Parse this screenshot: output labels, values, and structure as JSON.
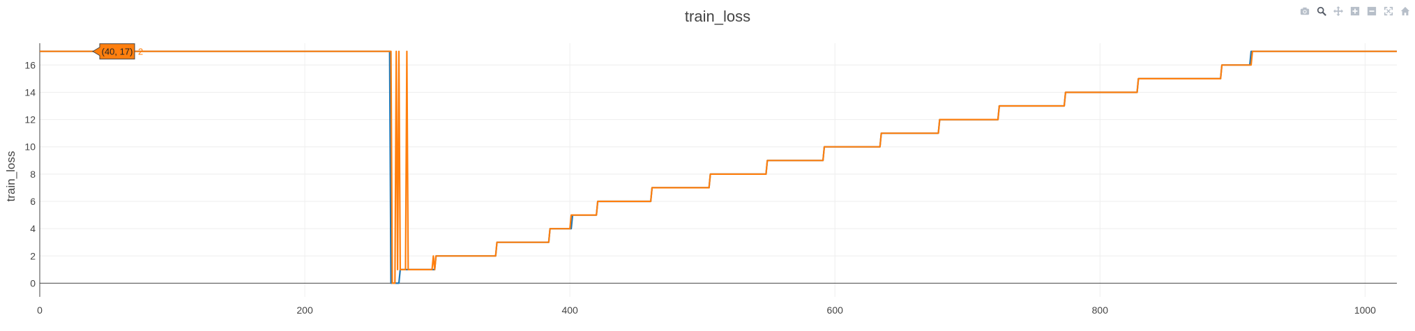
{
  "modebar": [
    {
      "name": "camera-icon",
      "title": "Download plot as a png",
      "glyph": "camera"
    },
    {
      "name": "zoom-icon",
      "title": "Zoom",
      "glyph": "zoom",
      "active": true
    },
    {
      "name": "pan-icon",
      "title": "Pan",
      "glyph": "pan"
    },
    {
      "name": "zoom-in-icon",
      "title": "Zoom in",
      "glyph": "plus"
    },
    {
      "name": "zoom-out-icon",
      "title": "Zoom out",
      "glyph": "minus"
    },
    {
      "name": "autoscale-icon",
      "title": "Autoscale",
      "glyph": "autoscale"
    },
    {
      "name": "home-icon",
      "title": "Reset axes",
      "glyph": "home"
    }
  ],
  "chart_data": {
    "type": "line",
    "title": "train_loss",
    "xlabel": "",
    "ylabel": "train_loss",
    "xlim": [
      0,
      1024
    ],
    "ylim": [
      -1,
      17.6
    ],
    "xticks": [
      0,
      200,
      400,
      600,
      800,
      1000
    ],
    "yticks": [
      0,
      2,
      4,
      6,
      8,
      10,
      12,
      14,
      16
    ],
    "grid": true,
    "hover_label": {
      "text": "(40, 17)",
      "trace": "2",
      "x": 40,
      "y": 17,
      "color": "#ff7f0e"
    },
    "series": [
      {
        "color": "#1f77b4",
        "points": [
          [
            0,
            17
          ],
          [
            264,
            17
          ],
          [
            265,
            0
          ],
          [
            271,
            0
          ],
          [
            272,
            1
          ],
          [
            298,
            1
          ],
          [
            299,
            2
          ],
          [
            344,
            2
          ],
          [
            345,
            3
          ],
          [
            384,
            3
          ],
          [
            385,
            4
          ],
          [
            401,
            4
          ],
          [
            402,
            5
          ],
          [
            420,
            5
          ],
          [
            421,
            6
          ],
          [
            461,
            6
          ],
          [
            462,
            7
          ],
          [
            505,
            7
          ],
          [
            506,
            8
          ],
          [
            548,
            8
          ],
          [
            549,
            9
          ],
          [
            591,
            9
          ],
          [
            592,
            10
          ],
          [
            634,
            10
          ],
          [
            635,
            11
          ],
          [
            678,
            11
          ],
          [
            679,
            12
          ],
          [
            723,
            12
          ],
          [
            724,
            13
          ],
          [
            773,
            13
          ],
          [
            774,
            14
          ],
          [
            828,
            14
          ],
          [
            829,
            15
          ],
          [
            891,
            15
          ],
          [
            892,
            16
          ],
          [
            913,
            16
          ],
          [
            914,
            17
          ],
          [
            1024,
            17
          ]
        ]
      },
      {
        "color": "#ff7f0e",
        "points": [
          [
            0,
            17
          ],
          [
            265,
            17
          ],
          [
            266,
            0
          ],
          [
            268,
            0
          ],
          [
            269,
            17
          ],
          [
            270,
            1
          ],
          [
            271,
            17
          ],
          [
            272,
            1
          ],
          [
            276,
            1
          ],
          [
            277,
            17
          ],
          [
            278,
            1
          ],
          [
            296,
            1
          ],
          [
            297,
            2
          ],
          [
            298,
            1
          ],
          [
            299,
            2
          ],
          [
            344,
            2
          ],
          [
            345,
            3
          ],
          [
            384,
            3
          ],
          [
            385,
            4
          ],
          [
            400,
            4
          ],
          [
            401,
            5
          ],
          [
            420,
            5
          ],
          [
            421,
            6
          ],
          [
            461,
            6
          ],
          [
            462,
            7
          ],
          [
            505,
            7
          ],
          [
            506,
            8
          ],
          [
            548,
            8
          ],
          [
            549,
            9
          ],
          [
            591,
            9
          ],
          [
            592,
            10
          ],
          [
            634,
            10
          ],
          [
            635,
            11
          ],
          [
            678,
            11
          ],
          [
            679,
            12
          ],
          [
            723,
            12
          ],
          [
            724,
            13
          ],
          [
            773,
            13
          ],
          [
            774,
            14
          ],
          [
            828,
            14
          ],
          [
            829,
            15
          ],
          [
            891,
            15
          ],
          [
            892,
            16
          ],
          [
            914,
            16
          ],
          [
            915,
            17
          ],
          [
            1024,
            17
          ]
        ]
      }
    ]
  }
}
